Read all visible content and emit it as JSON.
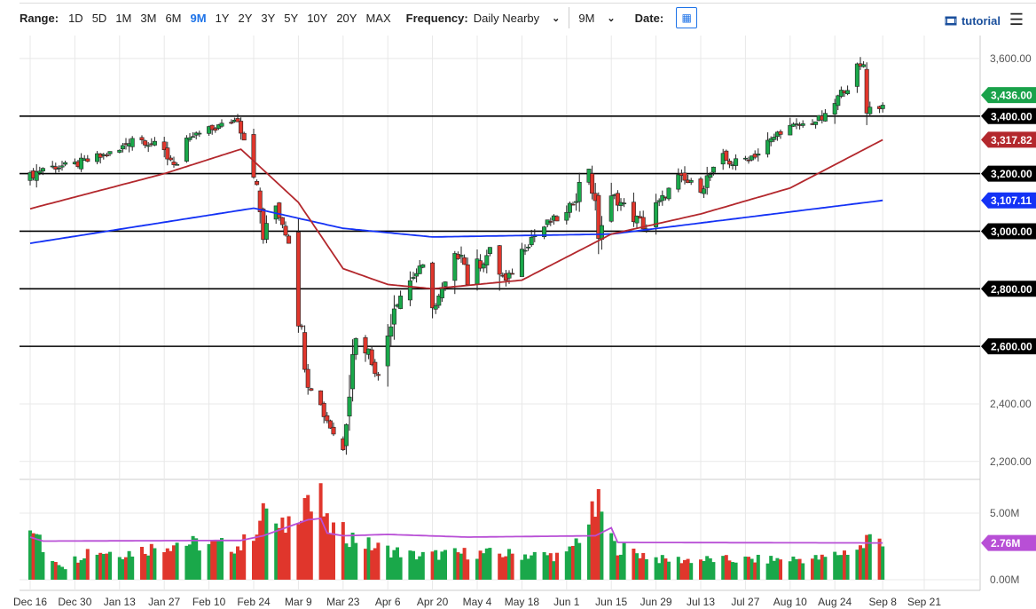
{
  "toolbar": {
    "range_label": "Range:",
    "ranges": [
      "1D",
      "5D",
      "1M",
      "3M",
      "6M",
      "9M",
      "1Y",
      "2Y",
      "3Y",
      "5Y",
      "10Y",
      "20Y",
      "MAX"
    ],
    "active_range": "9M",
    "frequency_label": "Frequency:",
    "frequency_value": "Daily Nearby",
    "period_value": "9M",
    "date_label": "Date:",
    "tutorial_label": "tutorial"
  },
  "chart_data": {
    "type": "candlestick",
    "x_ticks": [
      [
        "2019-12-16",
        "Dec 16"
      ],
      [
        "2019-12-30",
        "Dec 30"
      ],
      [
        "2020-01-13",
        "Jan 13"
      ],
      [
        "2020-01-27",
        "Jan 27"
      ],
      [
        "2020-02-10",
        "Feb 10"
      ],
      [
        "2020-02-24",
        "Feb 24"
      ],
      [
        "2020-03-09",
        "Mar 9"
      ],
      [
        "2020-03-23",
        "Mar 23"
      ],
      [
        "2020-04-06",
        "Apr 6"
      ],
      [
        "2020-04-20",
        "Apr 20"
      ],
      [
        "2020-05-04",
        "May 4"
      ],
      [
        "2020-05-18",
        "May 18"
      ],
      [
        "2020-06-01",
        "Jun 1"
      ],
      [
        "2020-06-15",
        "Jun 15"
      ],
      [
        "2020-06-29",
        "Jun 29"
      ],
      [
        "2020-07-13",
        "Jul 13"
      ],
      [
        "2020-07-27",
        "Jul 27"
      ],
      [
        "2020-08-10",
        "Aug 10"
      ],
      [
        "2020-08-24",
        "Aug 24"
      ],
      [
        "2020-09-08",
        "Sep 8"
      ],
      [
        "2020-09-21",
        "Sep 21"
      ]
    ],
    "y_ticks": [
      [
        3600,
        "3,600.00"
      ],
      [
        3400,
        "3,400.00"
      ],
      [
        3200,
        "3,200.00"
      ],
      [
        3000,
        "3,000.00"
      ],
      [
        2800,
        "2,800.00"
      ],
      [
        2600,
        "2,600.00"
      ],
      [
        2400,
        "2,400.00"
      ],
      [
        2200,
        "2,200.00"
      ]
    ],
    "ylim": [
      2150,
      3680
    ],
    "levels": [
      [
        3400,
        "3,400.00"
      ],
      [
        3200,
        "3,200.00"
      ],
      [
        3000,
        "3,000.00"
      ],
      [
        2800,
        "2,800.00"
      ],
      [
        2600,
        "2,600.00"
      ]
    ],
    "price_closes": [
      [
        "2019-12-16",
        3190
      ],
      [
        "2019-12-20",
        3220
      ],
      [
        "2019-12-30",
        3230
      ],
      [
        "2020-01-13",
        3280
      ],
      [
        "2020-01-17",
        3330
      ],
      [
        "2020-01-24",
        3300
      ],
      [
        "2020-01-31",
        3230
      ],
      [
        "2020-02-05",
        3330
      ],
      [
        "2020-02-10",
        3350
      ],
      [
        "2020-02-19",
        3390
      ],
      [
        "2020-02-24",
        3225
      ],
      [
        "2020-02-27",
        2980
      ],
      [
        "2020-03-02",
        3090
      ],
      [
        "2020-03-06",
        2970
      ],
      [
        "2020-03-09",
        2750
      ],
      [
        "2020-03-12",
        2480
      ],
      [
        "2020-03-16",
        2390
      ],
      [
        "2020-03-20",
        2300
      ],
      [
        "2020-03-23",
        2240
      ],
      [
        "2020-03-26",
        2630
      ],
      [
        "2020-03-31",
        2585
      ],
      [
        "2020-04-03",
        2490
      ],
      [
        "2020-04-08",
        2750
      ],
      [
        "2020-04-14",
        2845
      ],
      [
        "2020-04-17",
        2875
      ],
      [
        "2020-04-21",
        2740
      ],
      [
        "2020-04-29",
        2940
      ],
      [
        "2020-05-01",
        2830
      ],
      [
        "2020-05-08",
        2930
      ],
      [
        "2020-05-13",
        2820
      ],
      [
        "2020-05-15",
        2860
      ],
      [
        "2020-05-20",
        2970
      ],
      [
        "2020-05-27",
        3035
      ],
      [
        "2020-06-01",
        3055
      ],
      [
        "2020-06-08",
        3230
      ],
      [
        "2020-06-11",
        3000
      ],
      [
        "2020-06-16",
        3120
      ],
      [
        "2020-06-26",
        3010
      ],
      [
        "2020-06-30",
        3100
      ],
      [
        "2020-07-06",
        3180
      ],
      [
        "2020-07-13",
        3155
      ],
      [
        "2020-07-20",
        3250
      ],
      [
        "2020-07-23",
        3235
      ],
      [
        "2020-07-31",
        3270
      ],
      [
        "2020-08-07",
        3350
      ],
      [
        "2020-08-14",
        3370
      ],
      [
        "2020-08-21",
        3395
      ],
      [
        "2020-08-26",
        3480
      ],
      [
        "2020-09-02",
        3580
      ],
      [
        "2020-09-03",
        3455
      ],
      [
        "2020-09-04",
        3427
      ],
      [
        "2020-09-08",
        3436
      ]
    ],
    "ma50": [
      [
        "2019-12-16",
        3078
      ],
      [
        "2020-01-27",
        3200
      ],
      [
        "2020-02-20",
        3285
      ],
      [
        "2020-03-09",
        3100
      ],
      [
        "2020-03-23",
        2870
      ],
      [
        "2020-04-06",
        2815
      ],
      [
        "2020-04-20",
        2800
      ],
      [
        "2020-05-18",
        2830
      ],
      [
        "2020-06-15",
        2990
      ],
      [
        "2020-07-13",
        3060
      ],
      [
        "2020-08-10",
        3150
      ],
      [
        "2020-09-08",
        3317.82
      ]
    ],
    "ma200": [
      [
        "2019-12-16",
        2958
      ],
      [
        "2020-02-24",
        3080
      ],
      [
        "2020-03-23",
        3010
      ],
      [
        "2020-04-20",
        2980
      ],
      [
        "2020-06-15",
        2990
      ],
      [
        "2020-09-08",
        3107.11
      ]
    ],
    "last_price": {
      "value": 3436,
      "label": "3,436.00",
      "color": "#19a24a"
    },
    "ma50_label": {
      "value": 3317.82,
      "label": "3,317.82",
      "color": "#b3282d"
    },
    "ma200_label": {
      "value": 3107.11,
      "label": "3,107.11",
      "color": "#1432f5"
    },
    "volume": {
      "y_ticks": [
        [
          5,
          "5.00M"
        ],
        [
          0,
          "0.00M"
        ]
      ],
      "ylim": [
        0,
        7.2
      ],
      "values_m": [
        [
          "2019-12-16",
          3.2
        ],
        [
          "2019-12-18",
          3.6
        ],
        [
          "2019-12-20",
          2.1
        ],
        [
          "2019-12-27",
          1.0
        ],
        [
          "2020-01-03",
          2.2
        ],
        [
          "2020-01-15",
          2.0
        ],
        [
          "2020-01-31",
          2.8
        ],
        [
          "2020-02-05",
          2.7
        ],
        [
          "2020-02-20",
          2.5
        ],
        [
          "2020-02-24",
          3.7
        ],
        [
          "2020-02-27",
          4.8
        ],
        [
          "2020-02-28",
          5.8
        ],
        [
          "2020-03-03",
          3.5
        ],
        [
          "2020-03-09",
          5.4
        ],
        [
          "2020-03-12",
          6.5
        ],
        [
          "2020-03-13",
          5.2
        ],
        [
          "2020-03-16",
          6.0
        ],
        [
          "2020-03-18",
          4.0
        ],
        [
          "2020-03-23",
          3.5
        ],
        [
          "2020-04-01",
          2.5
        ],
        [
          "2020-04-15",
          1.8
        ],
        [
          "2020-05-01",
          2.0
        ],
        [
          "2020-06-01",
          1.8
        ],
        [
          "2020-06-11",
          5.5
        ],
        [
          "2020-06-12",
          5.2
        ],
        [
          "2020-06-16",
          2.5
        ],
        [
          "2020-07-01",
          1.5
        ],
        [
          "2020-08-01",
          1.5
        ],
        [
          "2020-08-20",
          1.6
        ],
        [
          "2020-09-02",
          2.5
        ],
        [
          "2020-09-03",
          3.1
        ],
        [
          "2020-09-08",
          3.1
        ]
      ],
      "ma": [
        [
          "2019-12-16",
          3.2
        ],
        [
          "2019-12-20",
          2.9
        ],
        [
          "2020-02-20",
          2.95
        ],
        [
          "2020-02-27",
          3.3
        ],
        [
          "2020-03-12",
          4.5
        ],
        [
          "2020-03-16",
          4.6
        ],
        [
          "2020-03-18",
          3.5
        ],
        [
          "2020-03-23",
          3.3
        ],
        [
          "2020-04-06",
          3.4
        ],
        [
          "2020-05-01",
          3.2
        ],
        [
          "2020-06-10",
          3.3
        ],
        [
          "2020-06-15",
          3.9
        ],
        [
          "2020-06-17",
          2.8
        ],
        [
          "2020-09-08",
          2.76
        ]
      ],
      "last_label": "2.76M",
      "ma_color": "#b84fd6"
    }
  }
}
